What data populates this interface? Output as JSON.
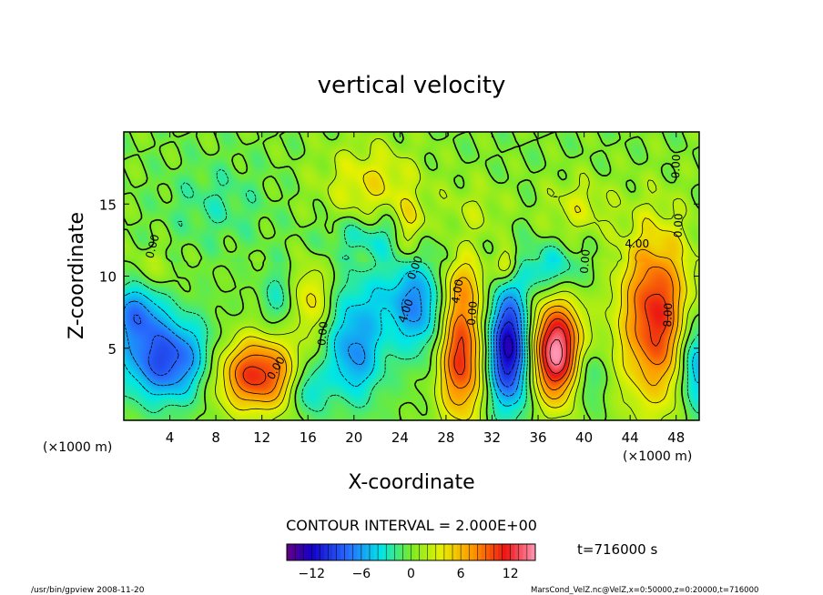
{
  "chart_data": {
    "type": "heatmap",
    "title": "vertical velocity",
    "xlabel": "X-coordinate",
    "ylabel": "Z-coordinate",
    "x_unit_left": "(×1000 m)",
    "x_unit_right": "(×1000 m)",
    "xlim": [
      0,
      50
    ],
    "ylim": [
      0,
      20
    ],
    "x_ticks": [
      4,
      8,
      12,
      16,
      20,
      24,
      28,
      32,
      36,
      40,
      44,
      48
    ],
    "y_ticks": [
      5,
      10,
      15
    ],
    "contour_interval_text": "CONTOUR INTERVAL = 2.000E+00",
    "time_text": "t=716000 s",
    "colorbar": {
      "min": -15,
      "max": 15,
      "ticks": [
        -12,
        -6,
        0,
        6,
        12
      ]
    },
    "contour_labels": [
      {
        "text": "0.00",
        "x": 2.8,
        "y": 12.0,
        "angle": -75
      },
      {
        "text": "0.00",
        "x": 13.5,
        "y": 3.5,
        "angle": -60
      },
      {
        "text": "0.00",
        "x": 17.6,
        "y": 6.0,
        "angle": -85
      },
      {
        "text": "4.00",
        "x": 24.8,
        "y": 7.5,
        "angle": -70
      },
      {
        "text": "0.00",
        "x": 25.6,
        "y": 10.5,
        "angle": -70
      },
      {
        "text": "4.00",
        "x": 29.3,
        "y": 8.9,
        "angle": -80
      },
      {
        "text": "0.00",
        "x": 30.6,
        "y": 7.4,
        "angle": -85
      },
      {
        "text": "0.00",
        "x": 40.4,
        "y": 11.0,
        "angle": -85
      },
      {
        "text": "4.00",
        "x": 44.6,
        "y": 12.0,
        "angle": 0
      },
      {
        "text": "0.00",
        "x": 48.3,
        "y": 17.6,
        "angle": -88
      },
      {
        "text": "0.00",
        "x": 48.5,
        "y": 13.5,
        "angle": -88
      },
      {
        "text": "8.00",
        "x": 47.6,
        "y": 7.3,
        "angle": -88
      }
    ],
    "features": [
      {
        "x": 3.8,
        "z": 4.2,
        "amp": -9,
        "sx": 2.8,
        "sz": 2.0
      },
      {
        "x": 1.0,
        "z": 7.5,
        "amp": -6,
        "sx": 1.6,
        "sz": 1.5
      },
      {
        "x": 11.5,
        "z": 3.2,
        "amp": 11,
        "sx": 2.6,
        "sz": 1.8
      },
      {
        "x": 16.0,
        "z": 2.2,
        "amp": -5,
        "sx": 1.1,
        "sz": 1.3
      },
      {
        "x": 16.3,
        "z": 8.4,
        "amp": 5,
        "sx": 1.3,
        "sz": 1.8
      },
      {
        "x": 13.5,
        "z": 8.5,
        "amp": -3,
        "sx": 1.0,
        "sz": 1.5
      },
      {
        "x": 20.0,
        "z": 4.5,
        "amp": -6,
        "sx": 1.8,
        "sz": 2.3
      },
      {
        "x": 22.5,
        "z": 8.5,
        "amp": -3,
        "sx": 3.5,
        "sz": 2.0
      },
      {
        "x": 25.8,
        "z": 7.8,
        "amp": -5,
        "sx": 1.6,
        "sz": 2.5
      },
      {
        "x": 29.3,
        "z": 4.5,
        "amp": 11,
        "sx": 1.4,
        "sz": 3.2
      },
      {
        "x": 29.5,
        "z": 9.5,
        "amp": 4,
        "sx": 1.5,
        "sz": 1.5
      },
      {
        "x": 33.5,
        "z": 5.0,
        "amp": -13,
        "sx": 1.3,
        "sz": 2.8
      },
      {
        "x": 37.6,
        "z": 4.8,
        "amp": 15,
        "sx": 1.6,
        "sz": 2.4
      },
      {
        "x": 40.2,
        "z": 3.2,
        "amp": -4,
        "sx": 1.0,
        "sz": 1.6
      },
      {
        "x": 37.0,
        "z": 10.5,
        "amp": -4,
        "sx": 2.0,
        "sz": 1.2
      },
      {
        "x": 33.3,
        "z": 10.8,
        "amp": 5,
        "sx": 0.7,
        "sz": 0.8
      },
      {
        "x": 46.2,
        "z": 7.3,
        "amp": 11,
        "sx": 2.2,
        "sz": 4.2
      },
      {
        "x": 49.6,
        "z": 4.0,
        "amp": -7,
        "sx": 1.0,
        "sz": 2.5
      },
      {
        "x": 21.5,
        "z": 16.5,
        "amp": 4,
        "sx": 3.0,
        "sz": 2.0
      },
      {
        "x": 25.0,
        "z": 13.2,
        "amp": 5,
        "sx": 0.9,
        "sz": 1.4
      },
      {
        "x": 39.5,
        "z": 14.8,
        "amp": 3,
        "sx": 2.0,
        "sz": 1.5
      },
      {
        "x": 21.5,
        "z": 12.8,
        "amp": -3,
        "sx": 3.0,
        "sz": 1.0
      },
      {
        "x": 8.0,
        "z": 15.0,
        "amp": -2,
        "sx": 3.0,
        "sz": 2.0
      },
      {
        "x": 2.5,
        "z": 10.5,
        "amp": 2,
        "sx": 1.2,
        "sz": 1.0
      },
      {
        "x": 30.5,
        "z": 14.5,
        "amp": 2,
        "sx": 2.0,
        "sz": 1.5
      }
    ]
  },
  "footer": {
    "left": "/usr/bin/gpview  2008-11-20",
    "right": "MarsCond_VelZ.nc@VelZ,x=0:50000,z=0:20000,t=716000"
  }
}
